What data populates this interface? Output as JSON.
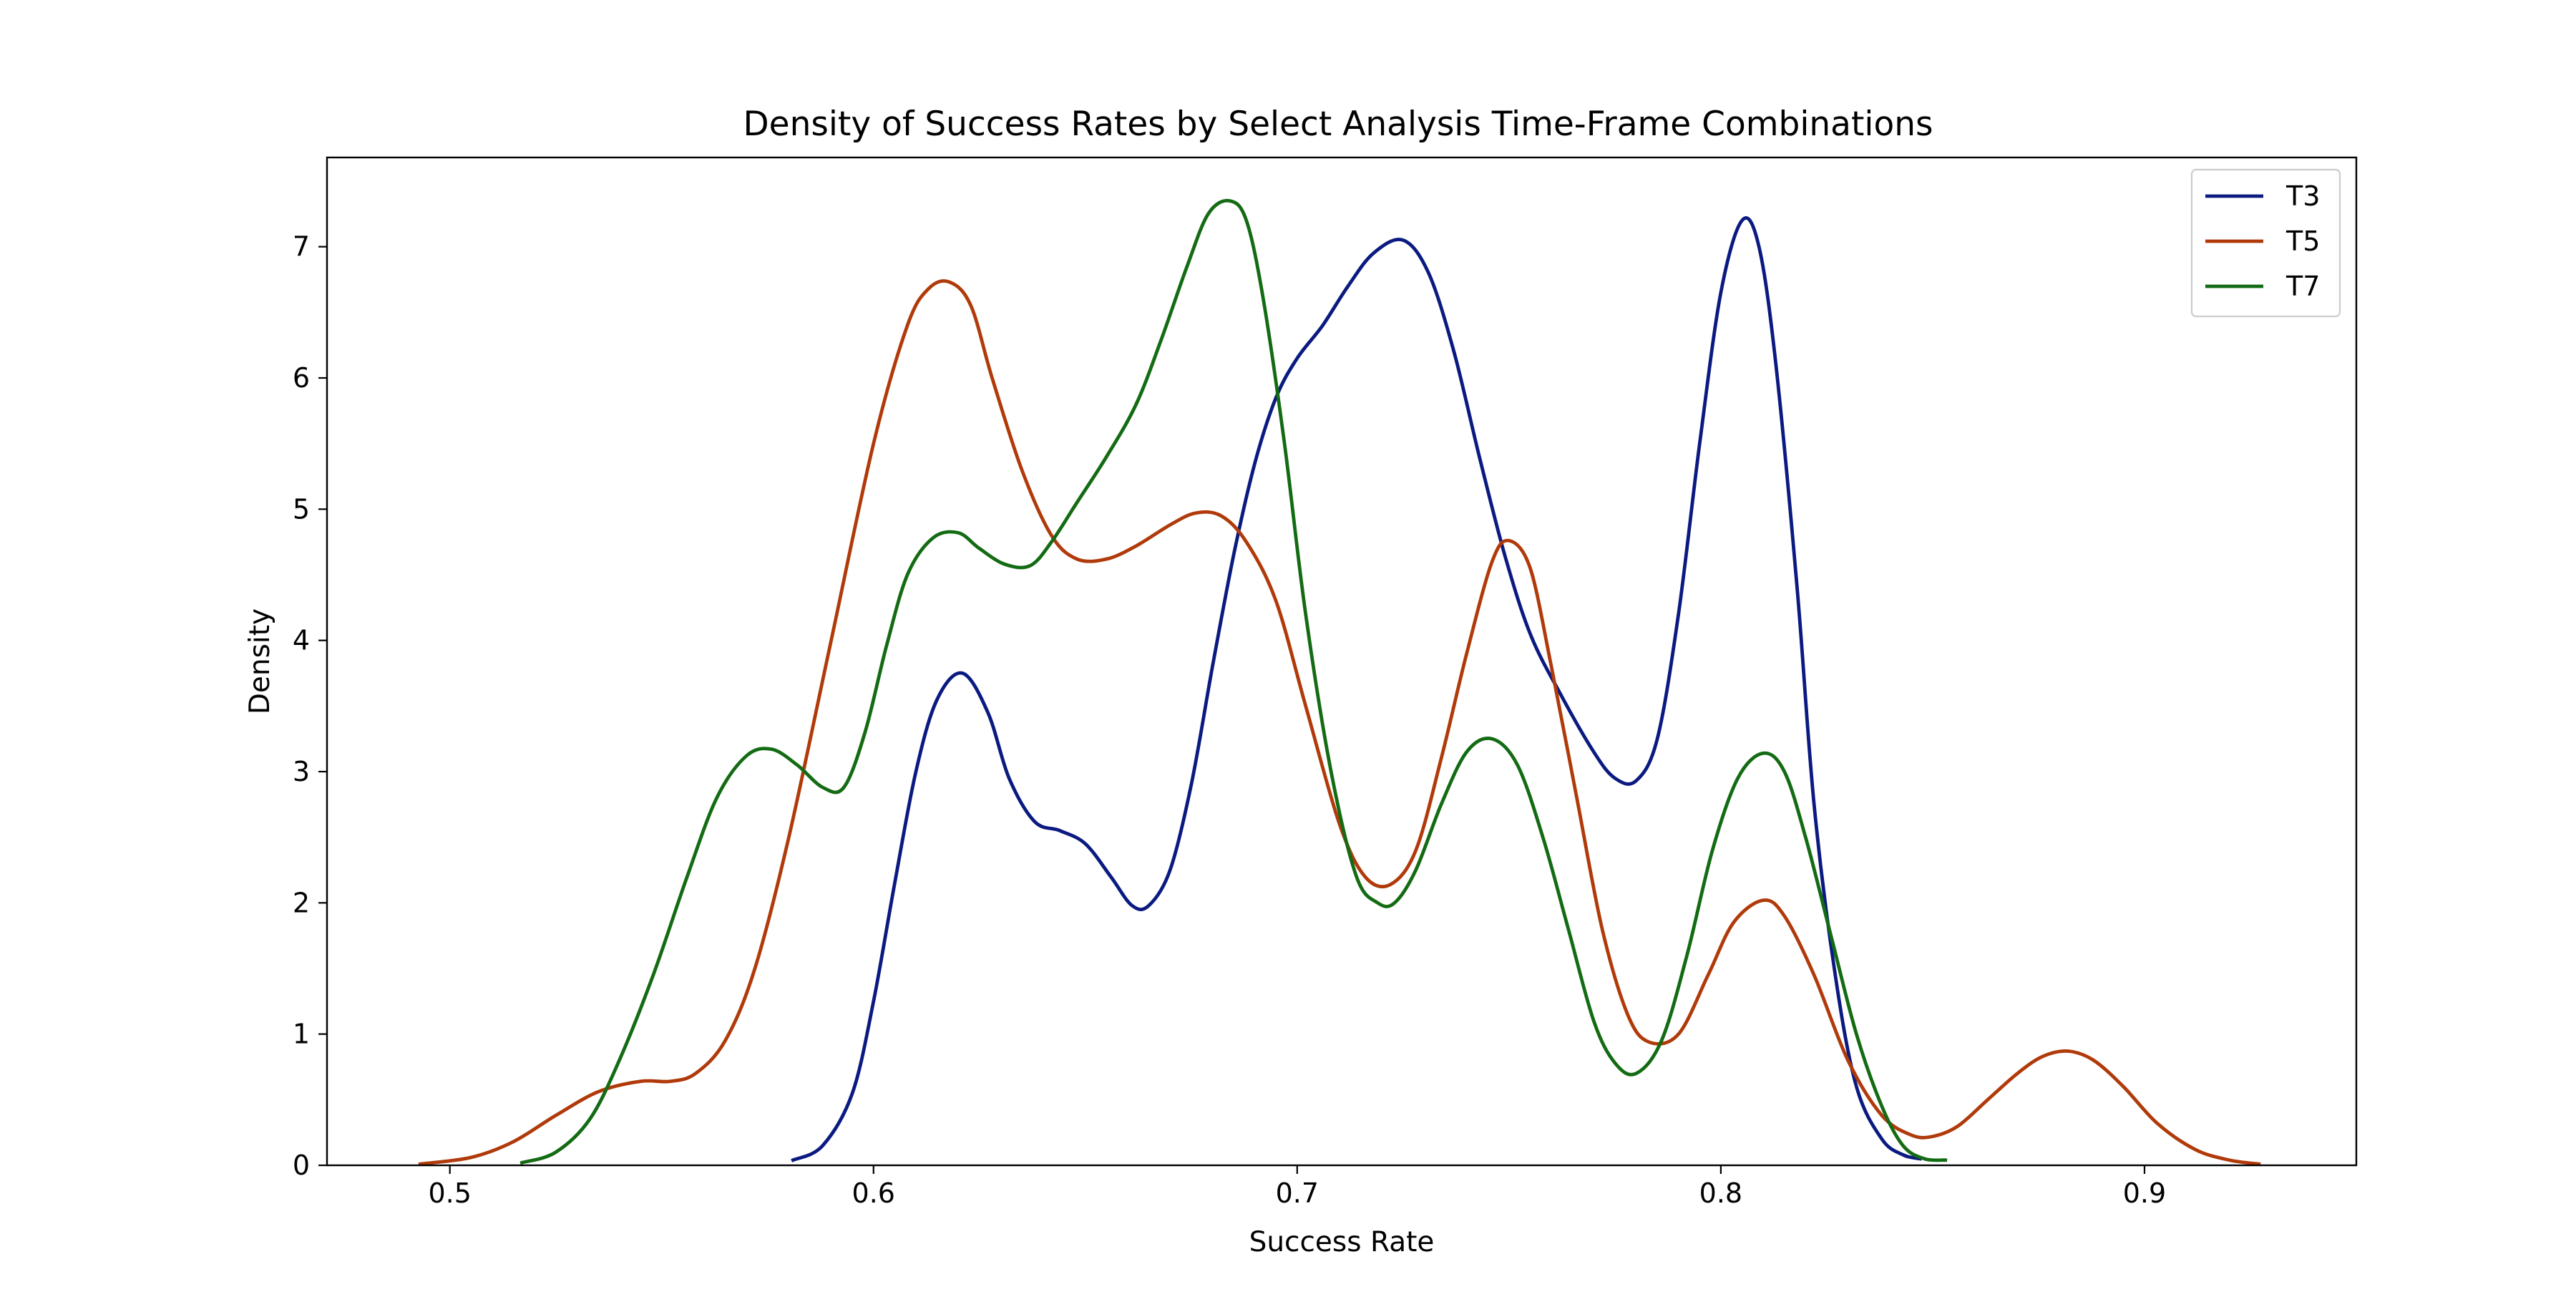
{
  "chart_data": {
    "type": "line",
    "title": "Density of Success Rates by Select Analysis Time-Frame Combinations",
    "xlabel": "Success Rate",
    "ylabel": "Density",
    "xlim": [
      0.471,
      0.95
    ],
    "ylim": [
      0,
      7.68
    ],
    "xticks": [
      0.5,
      0.6,
      0.7,
      0.8,
      0.9
    ],
    "xtick_labels": [
      "0.5",
      "0.6",
      "0.7",
      "0.8",
      "0.9"
    ],
    "yticks": [
      0,
      1,
      2,
      3,
      4,
      5,
      6,
      7
    ],
    "ytick_labels": [
      "0",
      "1",
      "2",
      "3",
      "4",
      "5",
      "6",
      "7"
    ],
    "grid": false,
    "legend_position": "top-right",
    "series": [
      {
        "name": "T3",
        "color": "#0a1a80",
        "x": [
          0.581,
          0.588,
          0.595,
          0.6,
          0.605,
          0.61,
          0.615,
          0.621,
          0.627,
          0.632,
          0.638,
          0.644,
          0.65,
          0.656,
          0.661,
          0.665,
          0.67,
          0.675,
          0.68,
          0.685,
          0.69,
          0.695,
          0.7,
          0.706,
          0.712,
          0.718,
          0.725,
          0.731,
          0.737,
          0.743,
          0.749,
          0.755,
          0.762,
          0.77,
          0.775,
          0.78,
          0.785,
          0.79,
          0.795,
          0.8,
          0.805,
          0.809,
          0.813,
          0.818,
          0.822,
          0.827,
          0.832,
          0.838,
          0.843,
          0.847
        ],
        "y": [
          0.04,
          0.15,
          0.55,
          1.25,
          2.15,
          3.0,
          3.55,
          3.75,
          3.45,
          2.95,
          2.62,
          2.55,
          2.45,
          2.2,
          1.98,
          1.98,
          2.25,
          2.9,
          3.8,
          4.65,
          5.35,
          5.85,
          6.15,
          6.4,
          6.7,
          6.95,
          7.05,
          6.8,
          6.2,
          5.4,
          4.65,
          4.05,
          3.6,
          3.15,
          2.95,
          2.93,
          3.25,
          4.2,
          5.5,
          6.65,
          7.2,
          7.0,
          6.1,
          4.4,
          2.75,
          1.45,
          0.6,
          0.2,
          0.08,
          0.05
        ]
      },
      {
        "name": "T5",
        "color": "#b03a0a",
        "x": [
          0.493,
          0.505,
          0.515,
          0.525,
          0.535,
          0.545,
          0.552,
          0.558,
          0.565,
          0.572,
          0.58,
          0.59,
          0.6,
          0.608,
          0.613,
          0.618,
          0.623,
          0.628,
          0.635,
          0.642,
          0.648,
          0.655,
          0.662,
          0.67,
          0.676,
          0.682,
          0.688,
          0.695,
          0.702,
          0.71,
          0.716,
          0.722,
          0.728,
          0.734,
          0.74,
          0.746,
          0.75,
          0.755,
          0.76,
          0.766,
          0.772,
          0.778,
          0.783,
          0.79,
          0.797,
          0.803,
          0.81,
          0.815,
          0.822,
          0.83,
          0.838,
          0.845,
          0.85,
          0.856,
          0.863,
          0.87,
          0.876,
          0.882,
          0.888,
          0.895,
          0.903,
          0.912,
          0.92,
          0.927
        ],
        "y": [
          0.01,
          0.06,
          0.18,
          0.38,
          0.56,
          0.64,
          0.64,
          0.7,
          0.95,
          1.5,
          2.5,
          4.0,
          5.5,
          6.4,
          6.68,
          6.73,
          6.55,
          6.0,
          5.3,
          4.8,
          4.62,
          4.62,
          4.72,
          4.88,
          4.97,
          4.95,
          4.75,
          4.3,
          3.5,
          2.6,
          2.2,
          2.14,
          2.4,
          3.1,
          3.9,
          4.6,
          4.76,
          4.55,
          3.8,
          2.8,
          1.8,
          1.15,
          0.94,
          1.0,
          1.45,
          1.85,
          2.02,
          1.9,
          1.45,
          0.8,
          0.38,
          0.23,
          0.22,
          0.3,
          0.5,
          0.7,
          0.83,
          0.87,
          0.8,
          0.6,
          0.32,
          0.12,
          0.04,
          0.01
        ]
      },
      {
        "name": "T7",
        "color": "#136b13",
        "x": [
          0.517,
          0.525,
          0.533,
          0.54,
          0.548,
          0.556,
          0.563,
          0.57,
          0.576,
          0.582,
          0.588,
          0.593,
          0.598,
          0.603,
          0.608,
          0.614,
          0.62,
          0.625,
          0.631,
          0.637,
          0.642,
          0.648,
          0.655,
          0.662,
          0.668,
          0.674,
          0.679,
          0.684,
          0.688,
          0.692,
          0.697,
          0.702,
          0.708,
          0.714,
          0.719,
          0.723,
          0.728,
          0.734,
          0.74,
          0.746,
          0.752,
          0.758,
          0.764,
          0.77,
          0.775,
          0.78,
          0.786,
          0.792,
          0.798,
          0.804,
          0.81,
          0.815,
          0.82,
          0.826,
          0.832,
          0.838,
          0.843,
          0.848,
          0.853
        ],
        "y": [
          0.02,
          0.1,
          0.35,
          0.8,
          1.45,
          2.2,
          2.8,
          3.12,
          3.17,
          3.05,
          2.88,
          2.88,
          3.3,
          3.95,
          4.5,
          4.78,
          4.82,
          4.7,
          4.58,
          4.57,
          4.75,
          5.05,
          5.4,
          5.8,
          6.3,
          6.85,
          7.25,
          7.35,
          7.2,
          6.6,
          5.5,
          4.2,
          3.0,
          2.2,
          2.0,
          2.0,
          2.25,
          2.75,
          3.15,
          3.25,
          3.05,
          2.5,
          1.8,
          1.1,
          0.78,
          0.7,
          0.95,
          1.6,
          2.4,
          2.95,
          3.14,
          3.0,
          2.5,
          1.75,
          1.0,
          0.45,
          0.15,
          0.05,
          0.04
        ]
      }
    ]
  }
}
